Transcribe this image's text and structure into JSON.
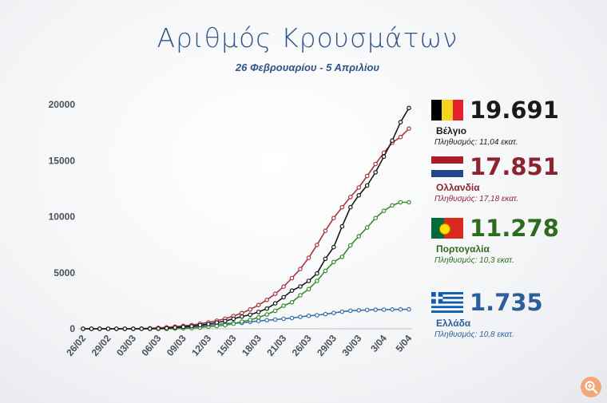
{
  "header": {
    "title": "Αριθμός Κρουσμάτων",
    "subtitle": "26 Φεβρουαρίου - 5 Απριλίου"
  },
  "chart_data": {
    "type": "line",
    "title": "Αριθμός Κρουσμάτων",
    "subtitle": "26 Φεβρουαρίου - 5 Απριλίου",
    "xlabel": "",
    "ylabel": "",
    "ylim": [
      0,
      20000
    ],
    "yticks": [
      0,
      5000,
      10000,
      15000,
      20000
    ],
    "ytick_labels": [
      "0",
      "5000",
      "10000",
      "15000",
      "20000"
    ],
    "xtick_labels": [
      "26/02",
      "29/02",
      "03/03",
      "06/03",
      "09/03",
      "12/03",
      "15/03",
      "18/03",
      "21/03",
      "26/03",
      "29/03",
      "30/03",
      "3/04",
      "5/04"
    ],
    "grid": false,
    "legend_position": "right",
    "points_per_series": 40,
    "series": [
      {
        "key": "be",
        "color": "#1a1a1a",
        "values": [
          0,
          0,
          0,
          0,
          0,
          0,
          0,
          2,
          10,
          20,
          50,
          110,
          170,
          230,
          320,
          420,
          560,
          690,
          890,
          1090,
          1250,
          1500,
          1800,
          2260,
          2820,
          3400,
          3770,
          4270,
          4930,
          6240,
          7280,
          9130,
          10840,
          11900,
          12780,
          13960,
          15350,
          16780,
          18430,
          19691
        ]
      },
      {
        "key": "nl",
        "color": "#a8343c",
        "values": [
          0,
          0,
          0,
          0,
          0,
          0,
          10,
          20,
          40,
          80,
          130,
          190,
          260,
          330,
          450,
          570,
          720,
          900,
          1130,
          1400,
          1720,
          2120,
          2580,
          3120,
          3760,
          4520,
          5330,
          6330,
          7480,
          8740,
          9880,
          10840,
          11750,
          12600,
          13630,
          14700,
          15700,
          16600,
          17100,
          17851
        ]
      },
      {
        "key": "pt",
        "color": "#3b8a2f",
        "values": [
          0,
          0,
          0,
          0,
          0,
          0,
          0,
          0,
          0,
          0,
          0,
          20,
          40,
          60,
          110,
          190,
          250,
          330,
          450,
          640,
          790,
          1020,
          1280,
          1600,
          2060,
          2360,
          2990,
          3540,
          4270,
          5170,
          5960,
          6410,
          7440,
          8250,
          9030,
          9880,
          10520,
          11000,
          11278,
          11278
        ]
      },
      {
        "key": "gr",
        "color": "#3a6fa6",
        "values": [
          0,
          0,
          0,
          0,
          0,
          3,
          7,
          20,
          40,
          70,
          90,
          110,
          140,
          180,
          230,
          330,
          390,
          460,
          500,
          530,
          620,
          700,
          760,
          820,
          890,
          960,
          1060,
          1160,
          1210,
          1310,
          1410,
          1520,
          1610,
          1650,
          1680,
          1700,
          1710,
          1720,
          1730,
          1735
        ]
      }
    ],
    "totals": [
      {
        "key": "be",
        "value": "19.691",
        "country": "Βέλγιο",
        "population": "Πληθυσμός: 11,04 εκατ."
      },
      {
        "key": "nl",
        "value": "17.851",
        "country": "Ολλανδία",
        "population": "Πληθυσμός: 17,18 εκατ."
      },
      {
        "key": "pt",
        "value": "11.278",
        "country": "Πορτογαλία",
        "population": "Πληθυσμός: 10,3 εκατ."
      },
      {
        "key": "gr",
        "value": "1.735",
        "country": "Ελλάδα",
        "population": "Πληθυσμός: 10,8 εκατ."
      }
    ]
  },
  "legend": {
    "be": {
      "value": "19.691",
      "country": "Βέλγιο",
      "population": "Πληθυσμός: 11,04 εκατ.",
      "value_color": "#1a1a1a",
      "country_color": "#1a1a1a"
    },
    "nl": {
      "value": "17.851",
      "country": "Ολλανδία",
      "population": "Πληθυσμός: 17,18 εκατ.",
      "value_color": "#8c2430",
      "country_color": "#8c2430"
    },
    "pt": {
      "value": "11.278",
      "country": "Πορτογαλία",
      "population": "Πληθυσμός: 10,3 εκατ.",
      "value_color": "#2e6b1f",
      "country_color": "#2e6b1f"
    },
    "gr": {
      "value": "1.735",
      "country": "Ελλάδα",
      "population": "Πληθυσμός: 10,8 εκατ.",
      "value_color": "#2c5f9a",
      "country_color": "#2c5f9a"
    }
  },
  "icons": {
    "zoom": "zoom-in-icon"
  }
}
